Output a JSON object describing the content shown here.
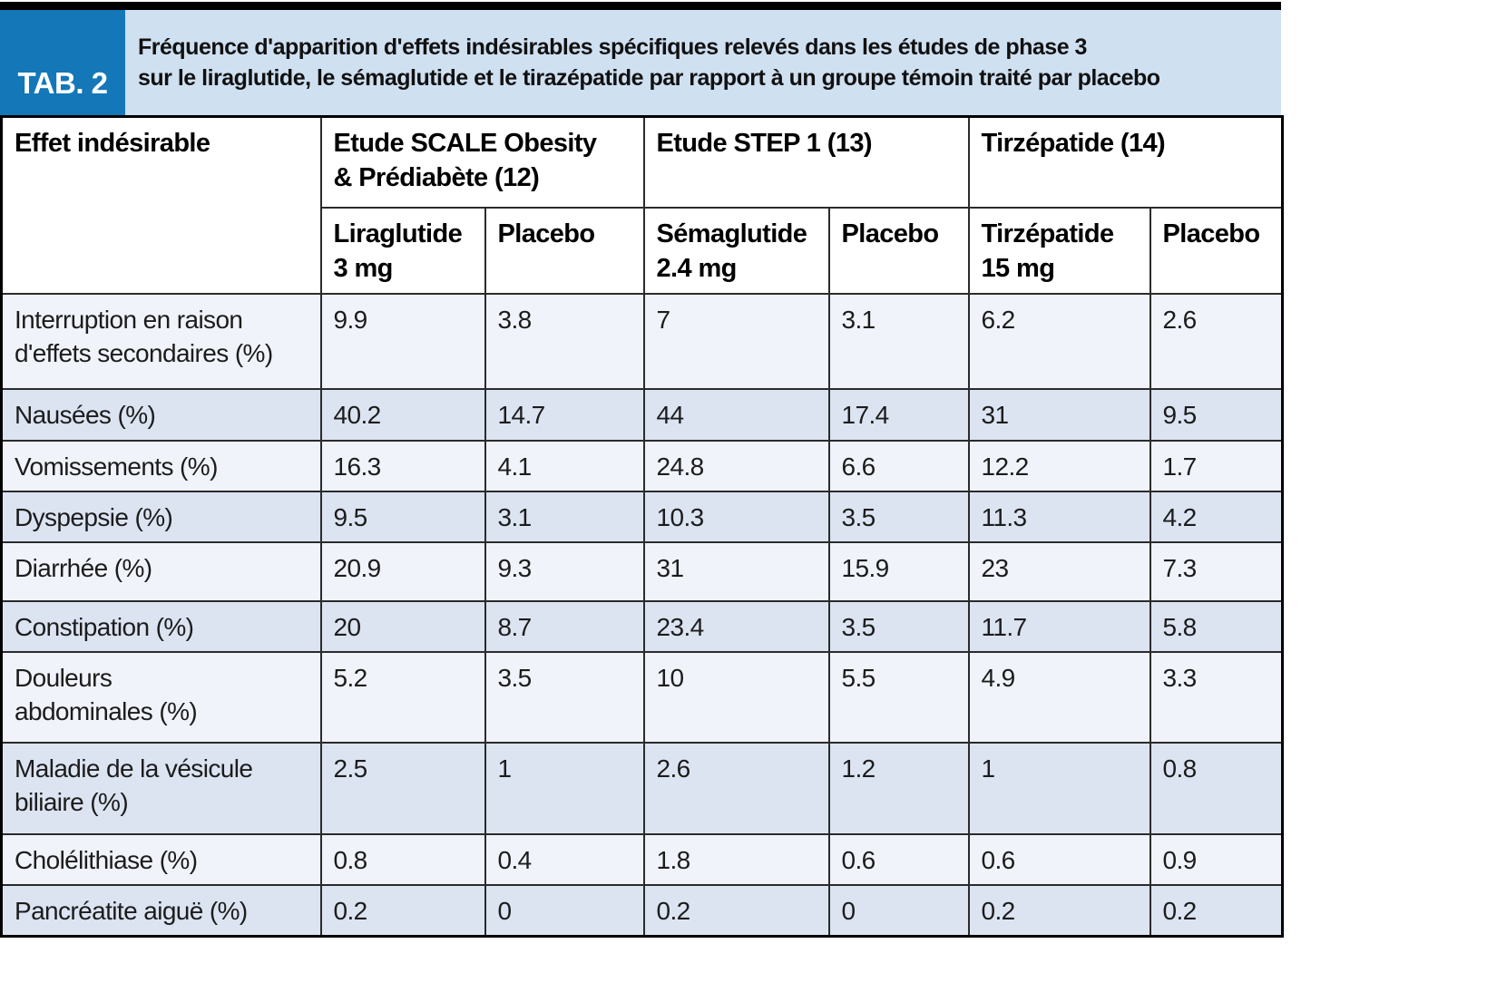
{
  "header": {
    "tab_label": "TAB. 2",
    "title_line1": "Fréquence d'apparition d'effets indésirables spécifiques relevés dans les études de phase 3",
    "title_line2": "sur le liraglutide, le sémaglutide et le tirazépatide par rapport à un groupe témoin traité par placebo"
  },
  "colors": {
    "tab_blue": "#1377b8",
    "banner_blue": "#cfe0f1",
    "row_light": "#f0f3fa",
    "row_dark": "#dce4f2",
    "border_dark": "#2b2b2b",
    "outer_border": "#000000"
  },
  "chart_data": {
    "type": "table",
    "corner_header": "Effet indésirable",
    "column_groups": [
      {
        "label": "Etude SCALE Obesity\n& Prédiabète (12)",
        "subcolumns": [
          "Liraglutide\n3 mg",
          "Placebo"
        ]
      },
      {
        "label": "Etude STEP 1 (13)",
        "subcolumns": [
          "Sémaglutide\n2.4 mg",
          "Placebo"
        ]
      },
      {
        "label": "Tirzépatide (14)",
        "subcolumns": [
          "Tirzépatide\n15 mg",
          "Placebo"
        ]
      }
    ],
    "rows": [
      {
        "label": "Interruption en raison\nd'effets secondaires (%)",
        "values": [
          "9.9",
          "3.8",
          "7",
          "3.1",
          "6.2",
          "2.6"
        ]
      },
      {
        "label": "Nausées (%)",
        "values": [
          "40.2",
          "14.7",
          "44",
          "17.4",
          "31",
          "9.5"
        ]
      },
      {
        "label": "Vomissements (%)",
        "values": [
          "16.3",
          "4.1",
          "24.8",
          "6.6",
          "12.2",
          "1.7"
        ]
      },
      {
        "label": "Dyspepsie (%)",
        "values": [
          "9.5",
          "3.1",
          "10.3",
          "3.5",
          "11.3",
          "4.2"
        ]
      },
      {
        "label": "Diarrhée (%)",
        "values": [
          "20.9",
          "9.3",
          "31",
          "15.9",
          "23",
          "7.3"
        ]
      },
      {
        "label": "Constipation (%)",
        "values": [
          "20",
          "8.7",
          "23.4",
          "3.5",
          "11.7",
          "5.8"
        ]
      },
      {
        "label": "Douleurs\nabdominales (%)",
        "values": [
          "5.2",
          "3.5",
          "10",
          "5.5",
          "4.9",
          "3.3"
        ]
      },
      {
        "label": "Maladie de la vésicule\nbiliaire (%)",
        "values": [
          "2.5",
          "1",
          "2.6",
          "1.2",
          "1",
          "0.8"
        ]
      },
      {
        "label": "Cholélithiase (%)",
        "values": [
          "0.8",
          "0.4",
          "1.8",
          "0.6",
          "0.6",
          "0.9"
        ]
      },
      {
        "label": "Pancréatite aiguë (%)",
        "values": [
          "0.2",
          "0",
          "0.2",
          "0",
          "0.2",
          "0.2"
        ]
      }
    ]
  }
}
